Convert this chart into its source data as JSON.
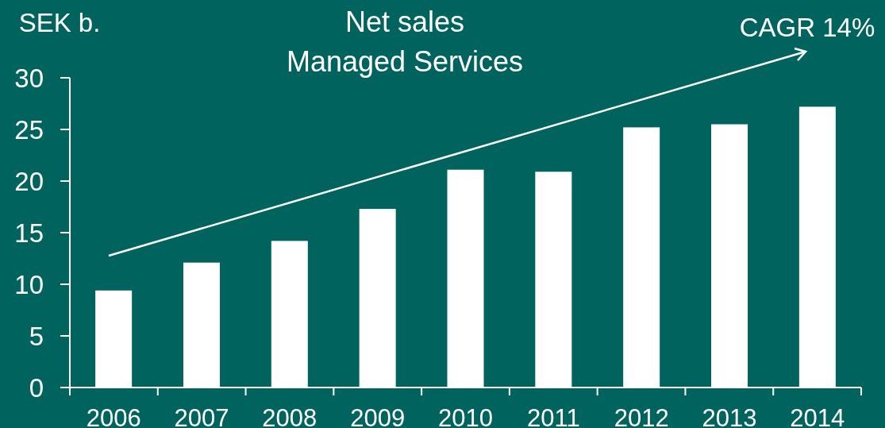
{
  "chart_data": {
    "type": "bar",
    "title": "Net sales\nManaged Services",
    "ylabel": "SEK b.",
    "categories": [
      "2006",
      "2007",
      "2008",
      "2009",
      "2010",
      "2011",
      "2012",
      "2013",
      "2014"
    ],
    "values": [
      9.4,
      12.1,
      14.2,
      17.3,
      21.1,
      20.9,
      25.2,
      25.5,
      27.2
    ],
    "color": "#ffffff",
    "ylim": [
      0,
      30
    ],
    "yticks": [
      0,
      5,
      10,
      15,
      20,
      25,
      30
    ],
    "annotations": [
      "CAGR 14%"
    ]
  }
}
